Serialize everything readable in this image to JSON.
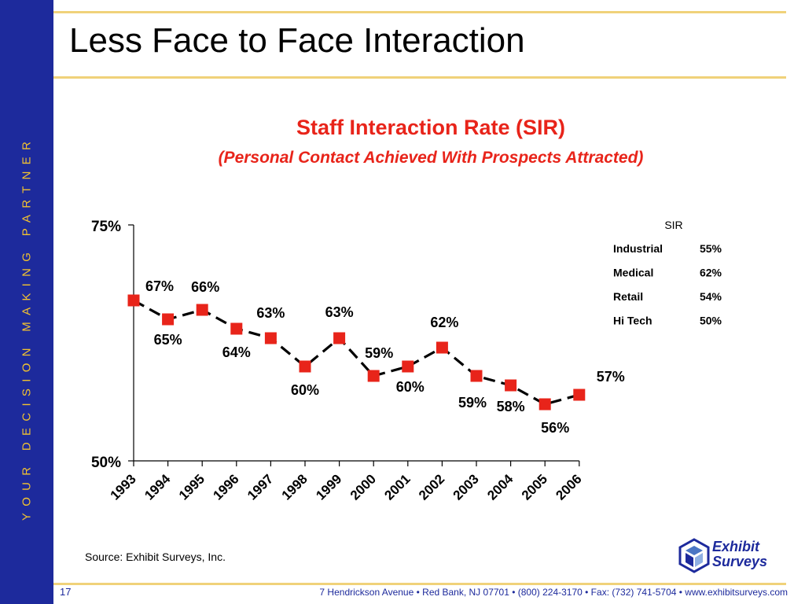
{
  "tagline": "YOUR DECISION MAKING PARTNER",
  "page_title": "Less Face to Face Interaction",
  "source": "Source: Exhibit Surveys, Inc.",
  "footer": {
    "page_number": "17",
    "info": "7 Hendrickson Avenue   •   Red Bank, NJ 07701   •   (800) 224-3170   •   Fax: (732) 741-5704   •   www.exhibitsurveys.com"
  },
  "logo": {
    "line1": "Exhibit",
    "line2": "Surveys",
    "icon": "cube-icon"
  },
  "colors": {
    "sidebar": "#1d2a9c",
    "tagline": "#f2c230",
    "rule": "#f0d27a",
    "title_red": "#e8241a",
    "marker": "#e8241a",
    "line": "#000000"
  },
  "chart_data": {
    "type": "line",
    "title": "Staff Interaction Rate (SIR)",
    "subtitle": "(Personal Contact Achieved With Prospects Attracted)",
    "xlabel": "",
    "ylabel": "",
    "categories": [
      "1993",
      "1994",
      "1995",
      "1996",
      "1997",
      "1998",
      "1999",
      "2000",
      "2001",
      "2002",
      "2003",
      "2004",
      "2005",
      "2006"
    ],
    "values": [
      67,
      65,
      66,
      64,
      63,
      60,
      63,
      59,
      60,
      62,
      59,
      58,
      56,
      57
    ],
    "data_labels": [
      "67%",
      "65%",
      "66%",
      "64%",
      "63%",
      "60%",
      "63%",
      "59%",
      "60%",
      "62%",
      "59%",
      "58%",
      "56%",
      "57%"
    ],
    "ylim": [
      50,
      75
    ],
    "yticks": [
      "50%",
      "75%"
    ],
    "line_style": "dashed",
    "grid": false,
    "legend_table": {
      "header": "SIR",
      "rows": [
        {
          "label": "Industrial",
          "value": "55%"
        },
        {
          "label": "Medical",
          "value": "62%"
        },
        {
          "label": "Retail",
          "value": "54%"
        },
        {
          "label": "Hi Tech",
          "value": "50%"
        }
      ]
    }
  }
}
